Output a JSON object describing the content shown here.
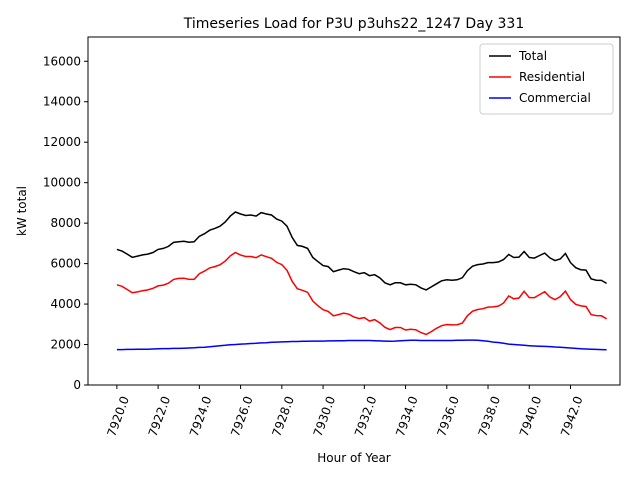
{
  "chart_data": {
    "type": "line",
    "title": "Timeseries Load for P3U p3uhs22_1247  Day 331",
    "xlabel": "Hour of Year",
    "ylabel": "kW total",
    "xlim": [
      7918.6,
      7944.4
    ],
    "ylim": [
      0,
      17200
    ],
    "xticks": [
      7920,
      7922,
      7924,
      7926,
      7928,
      7930,
      7932,
      7934,
      7936,
      7938,
      7940,
      7942
    ],
    "xtick_labels": [
      "7920.0",
      "7922.0",
      "7924.0",
      "7926.0",
      "7928.0",
      "7930.0",
      "7932.0",
      "7934.0",
      "7936.0",
      "7938.0",
      "7940.0",
      "7942.0"
    ],
    "yticks": [
      0,
      2000,
      4000,
      6000,
      8000,
      10000,
      12000,
      14000,
      16000
    ],
    "ytick_labels": [
      "0",
      "2000",
      "4000",
      "6000",
      "8000",
      "10000",
      "12000",
      "14000",
      "16000"
    ],
    "legend_position": "top-right",
    "x_start": 7920,
    "x_step": 0.25,
    "series": [
      {
        "name": "Total",
        "color": "#000000",
        "values": [
          6700,
          6620,
          6470,
          6310,
          6370,
          6430,
          6470,
          6550,
          6700,
          6750,
          6850,
          7050,
          7080,
          7100,
          7060,
          7080,
          7350,
          7480,
          7650,
          7740,
          7850,
          8050,
          8350,
          8550,
          8450,
          8380,
          8400,
          8350,
          8520,
          8450,
          8400,
          8200,
          8100,
          7850,
          7300,
          6900,
          6850,
          6750,
          6300,
          6100,
          5900,
          5850,
          5600,
          5680,
          5750,
          5720,
          5600,
          5500,
          5550,
          5400,
          5450,
          5300,
          5050,
          4950,
          5050,
          5050,
          4950,
          4980,
          4950,
          4800,
          4700,
          4850,
          5000,
          5150,
          5200,
          5180,
          5200,
          5300,
          5650,
          5870,
          5950,
          5980,
          6050,
          6050,
          6080,
          6200,
          6450,
          6300,
          6320,
          6600,
          6300,
          6270,
          6400,
          6520,
          6280,
          6150,
          6230,
          6500,
          6050,
          5800,
          5700,
          5680,
          5250,
          5180,
          5170,
          5020
        ]
      },
      {
        "name": "Residential",
        "color": "#ff0000",
        "values": [
          4950,
          4880,
          4720,
          4560,
          4600,
          4660,
          4700,
          4780,
          4900,
          4940,
          5030,
          5220,
          5270,
          5280,
          5220,
          5230,
          5500,
          5630,
          5790,
          5850,
          5940,
          6120,
          6380,
          6550,
          6420,
          6350,
          6350,
          6290,
          6430,
          6340,
          6260,
          6060,
          5950,
          5670,
          5130,
          4760,
          4680,
          4580,
          4150,
          3920,
          3720,
          3640,
          3420,
          3480,
          3550,
          3500,
          3360,
          3280,
          3330,
          3160,
          3230,
          3070,
          2850,
          2740,
          2840,
          2840,
          2720,
          2760,
          2730,
          2590,
          2500,
          2640,
          2800,
          2930,
          2990,
          2970,
          2980,
          3060,
          3420,
          3650,
          3730,
          3770,
          3850,
          3860,
          3900,
          4050,
          4400,
          4260,
          4300,
          4630,
          4320,
          4320,
          4470,
          4610,
          4350,
          4220,
          4370,
          4640,
          4220,
          3990,
          3910,
          3880,
          3480,
          3430,
          3420,
          3270
        ]
      },
      {
        "name": "Commercial",
        "color": "#0000ff",
        "values": [
          1750,
          1750,
          1760,
          1760,
          1770,
          1770,
          1770,
          1780,
          1790,
          1800,
          1800,
          1810,
          1810,
          1820,
          1830,
          1840,
          1860,
          1870,
          1890,
          1920,
          1940,
          1960,
          1990,
          2000,
          2020,
          2030,
          2050,
          2060,
          2080,
          2090,
          2110,
          2120,
          2130,
          2140,
          2150,
          2150,
          2160,
          2160,
          2170,
          2170,
          2170,
          2180,
          2180,
          2190,
          2190,
          2200,
          2200,
          2200,
          2200,
          2200,
          2190,
          2180,
          2170,
          2160,
          2170,
          2190,
          2200,
          2210,
          2210,
          2200,
          2200,
          2200,
          2200,
          2200,
          2200,
          2200,
          2210,
          2210,
          2220,
          2220,
          2210,
          2190,
          2160,
          2120,
          2100,
          2060,
          2020,
          2000,
          1980,
          1960,
          1940,
          1930,
          1920,
          1910,
          1900,
          1880,
          1870,
          1850,
          1830,
          1810,
          1790,
          1780,
          1770,
          1760,
          1750,
          1740
        ]
      }
    ]
  }
}
